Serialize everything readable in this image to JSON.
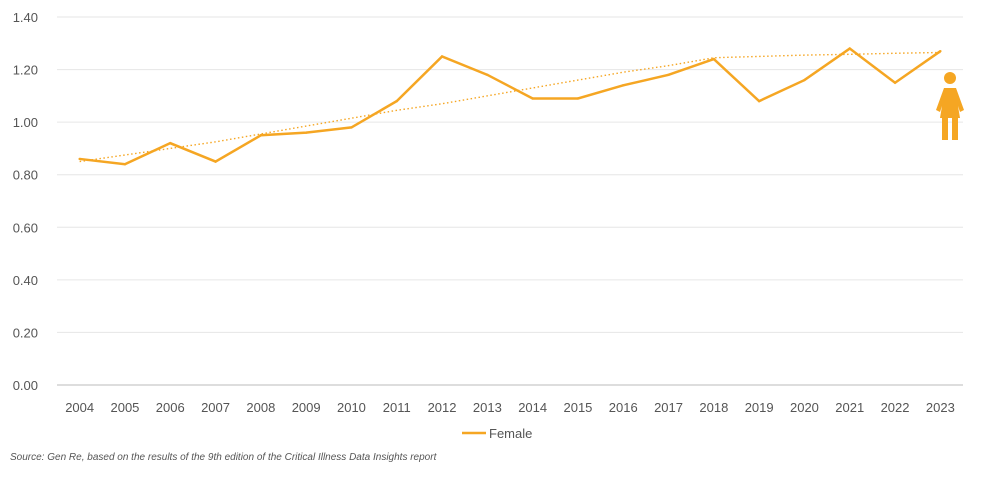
{
  "chart_data": {
    "type": "line",
    "categories": [
      "2004",
      "2005",
      "2006",
      "2007",
      "2008",
      "2009",
      "2010",
      "2011",
      "2012",
      "2013",
      "2014",
      "2015",
      "2016",
      "2017",
      "2018",
      "2019",
      "2020",
      "2021",
      "2022",
      "2023"
    ],
    "series": [
      {
        "name": "Female",
        "values": [
          0.86,
          0.84,
          0.92,
          0.85,
          0.95,
          0.96,
          0.98,
          1.08,
          1.25,
          1.18,
          1.09,
          1.09,
          1.14,
          1.18,
          1.24,
          1.08,
          1.16,
          1.28,
          1.15,
          1.27
        ],
        "color": "#F5A623"
      }
    ],
    "trendline": {
      "style": "dotted",
      "values": [
        0.85,
        0.875,
        0.9,
        0.925,
        0.955,
        0.985,
        1.015,
        1.045,
        1.07,
        1.1,
        1.13,
        1.16,
        1.19,
        1.215,
        1.245,
        1.25,
        1.255,
        1.258,
        1.262,
        1.265
      ]
    },
    "ylim": [
      0,
      1.4
    ],
    "yticks": [
      "0.00",
      "0.20",
      "0.40",
      "0.60",
      "0.80",
      "1.00",
      "1.20",
      "1.40"
    ],
    "title": "",
    "xlabel": "",
    "ylabel": "",
    "grid": true,
    "legend": "bottom-center",
    "icon": "female-figure-icon"
  },
  "source_text": "Source: Gen Re, based on the results of the 9th edition of the Critical Illness Data Insights report",
  "colors": {
    "line": "#F5A623",
    "grid": "#E6E6E6",
    "axis": "#555555",
    "text": "#555555"
  }
}
